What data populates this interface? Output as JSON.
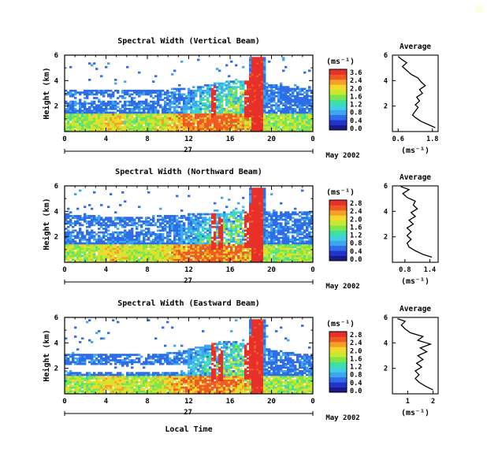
{
  "figure": {
    "x_label": "Local Time",
    "date_label": "May 2002",
    "day_label": "27",
    "x_ticks": [
      "0",
      "4",
      "8",
      "12",
      "16",
      "20",
      "0"
    ],
    "y_label": "Height (km)",
    "y_ticks": [
      "6",
      "4",
      "2"
    ],
    "unit_label": "(ms⁻¹)",
    "profile_title": "Average",
    "profile_unit": "(ms⁻¹)",
    "colors": [
      "#1a1a8c",
      "#2233cc",
      "#2e6ce8",
      "#3da6f0",
      "#3fd0e0",
      "#3de0a0",
      "#7fe64a",
      "#c8e832",
      "#f5d92a",
      "#f5a028",
      "#f05a22",
      "#e8302a"
    ]
  },
  "chart_data": [
    {
      "type": "heatmap",
      "title": "Spectral Width (Vertical Beam)",
      "xlabel": "Local Time",
      "ylabel": "Height (km)",
      "xlim": [
        0,
        24
      ],
      "ylim": [
        0,
        6
      ],
      "colorbar": {
        "ticks": [
          "3.6",
          "2.4",
          "2.0",
          "1.6",
          "1.2",
          "0.8",
          "0.4",
          "0.0"
        ]
      },
      "profile": {
        "title": "Average",
        "xlabel": "(ms⁻¹)",
        "xticks": [
          "0.6",
          "1.8"
        ],
        "xlim": [
          0.4,
          2.0
        ],
        "ylim": [
          0,
          6
        ],
        "points": [
          [
            1.9,
            0.3
          ],
          [
            1.7,
            0.5
          ],
          [
            1.4,
            0.8
          ],
          [
            1.2,
            1.1
          ],
          [
            1.1,
            1.3
          ],
          [
            1.2,
            1.6
          ],
          [
            1.3,
            1.9
          ],
          [
            1.2,
            2.1
          ],
          [
            1.35,
            2.4
          ],
          [
            1.25,
            2.7
          ],
          [
            1.45,
            3.0
          ],
          [
            1.35,
            3.3
          ],
          [
            1.55,
            3.6
          ],
          [
            1.4,
            3.9
          ],
          [
            1.3,
            4.2
          ],
          [
            1.05,
            4.5
          ],
          [
            0.9,
            4.8
          ],
          [
            0.75,
            5.1
          ],
          [
            0.9,
            5.4
          ],
          [
            0.7,
            5.7
          ],
          [
            0.6,
            5.9
          ]
        ]
      }
    },
    {
      "type": "heatmap",
      "title": "Spectral Width (Northward Beam)",
      "xlabel": "Local Time",
      "ylabel": "Height (km)",
      "xlim": [
        0,
        24
      ],
      "ylim": [
        0,
        6
      ],
      "colorbar": {
        "ticks": [
          "2.8",
          "2.4",
          "2.0",
          "1.6",
          "1.2",
          "0.8",
          "0.4",
          "0.0"
        ]
      },
      "profile": {
        "title": "Average",
        "xlabel": "(ms⁻¹)",
        "xticks": [
          "0.8",
          "1.4"
        ],
        "xlim": [
          0.5,
          1.6
        ],
        "ylim": [
          0,
          6
        ],
        "points": [
          [
            1.45,
            0.4
          ],
          [
            1.25,
            0.6
          ],
          [
            1.05,
            0.9
          ],
          [
            0.9,
            1.2
          ],
          [
            0.85,
            1.5
          ],
          [
            0.95,
            1.8
          ],
          [
            0.85,
            2.1
          ],
          [
            0.95,
            2.4
          ],
          [
            0.85,
            2.7
          ],
          [
            1.0,
            3.0
          ],
          [
            0.9,
            3.3
          ],
          [
            1.05,
            3.6
          ],
          [
            0.95,
            3.9
          ],
          [
            1.1,
            4.2
          ],
          [
            1.0,
            4.5
          ],
          [
            1.05,
            4.8
          ],
          [
            0.85,
            5.1
          ],
          [
            0.75,
            5.4
          ],
          [
            0.9,
            5.7
          ],
          [
            0.7,
            5.95
          ]
        ]
      }
    },
    {
      "type": "heatmap",
      "title": "Spectral Width (Eastward Beam)",
      "xlabel": "Local Time",
      "ylabel": "Height (km)",
      "xlim": [
        0,
        24
      ],
      "ylim": [
        0,
        6
      ],
      "colorbar": {
        "ticks": [
          "2.8",
          "2.4",
          "2.0",
          "1.6",
          "1.2",
          "0.8",
          "0.4",
          "0.0"
        ]
      },
      "profile": {
        "title": "Average",
        "xlabel": "(ms⁻¹)",
        "xticks": [
          "1",
          "2"
        ],
        "xlim": [
          0.4,
          2.2
        ],
        "ylim": [
          0,
          6
        ],
        "points": [
          [
            2.0,
            0.3
          ],
          [
            1.7,
            0.6
          ],
          [
            1.45,
            0.9
          ],
          [
            1.3,
            1.2
          ],
          [
            1.45,
            1.5
          ],
          [
            1.3,
            1.8
          ],
          [
            1.55,
            2.1
          ],
          [
            1.35,
            2.4
          ],
          [
            1.6,
            2.7
          ],
          [
            1.4,
            3.0
          ],
          [
            1.75,
            3.3
          ],
          [
            1.5,
            3.6
          ],
          [
            1.9,
            3.9
          ],
          [
            1.4,
            4.2
          ],
          [
            1.6,
            4.5
          ],
          [
            1.1,
            4.8
          ],
          [
            0.9,
            5.1
          ],
          [
            0.75,
            5.4
          ],
          [
            0.9,
            5.7
          ],
          [
            0.6,
            5.9
          ]
        ]
      }
    }
  ]
}
